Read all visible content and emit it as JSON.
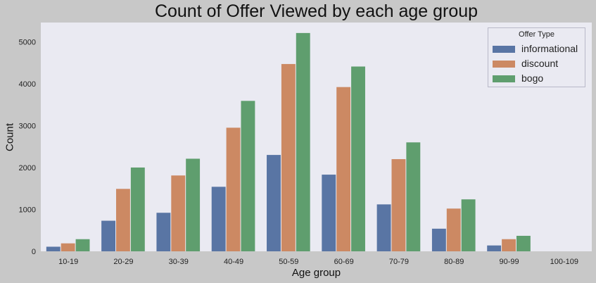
{
  "chart_data": {
    "type": "bar",
    "title": "Count of Offer Viewed by each age group",
    "xlabel": "Age group",
    "ylabel": "Count",
    "categories": [
      "10-19",
      "20-29",
      "30-39",
      "40-49",
      "50-59",
      "60-69",
      "70-79",
      "80-89",
      "90-99",
      "100-109"
    ],
    "series": [
      {
        "name": "informational",
        "color": "#5975a4",
        "values": [
          110,
          730,
          920,
          1540,
          2300,
          1830,
          1120,
          540,
          140,
          0
        ]
      },
      {
        "name": "discount",
        "color": "#cc8963",
        "values": [
          190,
          1490,
          1810,
          2950,
          4470,
          3920,
          2200,
          1020,
          290,
          0
        ]
      },
      {
        "name": "bogo",
        "color": "#5f9e6e",
        "values": [
          290,
          2000,
          2210,
          3590,
          5210,
          4410,
          2600,
          1240,
          370,
          0
        ]
      }
    ],
    "ylim": [
      0,
      5460
    ],
    "yticks": [
      0,
      1000,
      2000,
      3000,
      4000,
      5000
    ],
    "legend": {
      "title": "Offer Type",
      "placement": "top-right"
    },
    "grid": false,
    "plot_background": "#eaeaf2",
    "figure_background": "#c8c8c8"
  }
}
